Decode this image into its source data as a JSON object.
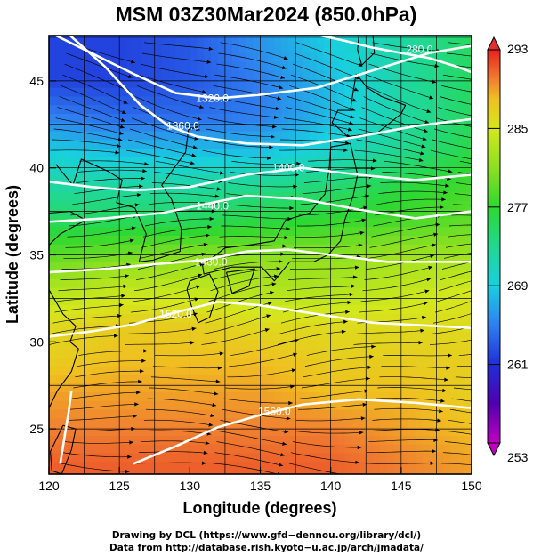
{
  "chart_data": {
    "type": "heatmap",
    "title": "MSM 03Z30Mar2024 (850.0hPa)",
    "xlabel": "Longitude (degrees)",
    "ylabel": "Latitude  (degrees)",
    "xlim": [
      120,
      150
    ],
    "ylim": [
      22.4,
      47.6
    ],
    "x_ticks": [
      120,
      125,
      130,
      135,
      140,
      145,
      150
    ],
    "y_ticks": [
      25,
      30,
      35,
      40,
      45
    ],
    "grid": true,
    "colorbar": {
      "range": [
        253,
        293
      ],
      "tick_labels": [
        "293",
        "285",
        "277",
        "269",
        "261",
        "253"
      ],
      "tick_values": [
        293,
        285,
        277,
        269,
        261,
        253
      ],
      "stops": [
        {
          "value": 253,
          "color": "#c000c0"
        },
        {
          "value": 257,
          "color": "#5000b0"
        },
        {
          "value": 261,
          "color": "#1e2fd8"
        },
        {
          "value": 265,
          "color": "#2f7ff0"
        },
        {
          "value": 269,
          "color": "#18d0e0"
        },
        {
          "value": 273,
          "color": "#20d890"
        },
        {
          "value": 277,
          "color": "#2ed830"
        },
        {
          "value": 281,
          "color": "#8ce020"
        },
        {
          "value": 285,
          "color": "#d4e81c"
        },
        {
          "value": 288,
          "color": "#f0c020"
        },
        {
          "value": 290,
          "color": "#f08030"
        },
        {
          "value": 293,
          "color": "#e82020"
        }
      ]
    },
    "temperature_field": {
      "lat_rows": [
        47,
        45,
        43,
        41,
        39,
        37,
        35,
        33,
        31,
        29,
        27,
        25,
        23
      ],
      "lon_cols": [
        120,
        125,
        130,
        135,
        140,
        145,
        150
      ],
      "values": [
        [
          262,
          262,
          263,
          266,
          269,
          272,
          275
        ],
        [
          262,
          262,
          263,
          265,
          268,
          272,
          275
        ],
        [
          265,
          264,
          264,
          265,
          268,
          272,
          275
        ],
        [
          269,
          268,
          268,
          268,
          270,
          273,
          276
        ],
        [
          272,
          272,
          272,
          273,
          274,
          276,
          278
        ],
        [
          275,
          275,
          275,
          276,
          277,
          278,
          279
        ],
        [
          279,
          280,
          281,
          281,
          281,
          282,
          282
        ],
        [
          283,
          284,
          284,
          283,
          283,
          284,
          285
        ],
        [
          286,
          287,
          287,
          286,
          286,
          286,
          286
        ],
        [
          287,
          288,
          288,
          288,
          287,
          287,
          287
        ],
        [
          289,
          289,
          289,
          289,
          288,
          288,
          287
        ],
        [
          290,
          290,
          290,
          290,
          290,
          289,
          288
        ],
        [
          291,
          291,
          291,
          291,
          291,
          290,
          289
        ]
      ]
    },
    "contours": [
      {
        "label": "1320.0",
        "label_pos": [
          131.6,
          44.0
        ],
        "points": [
          [
            120.5,
            47.6
          ],
          [
            123,
            46.6
          ],
          [
            126,
            45.4
          ],
          [
            129,
            44.3
          ],
          [
            132,
            44.0
          ],
          [
            135,
            44.2
          ],
          [
            139,
            44.6
          ],
          [
            143,
            45.6
          ],
          [
            147,
            46.6
          ],
          [
            150,
            47.0
          ]
        ]
      },
      {
        "label": "1360.0",
        "label_pos": [
          129.5,
          42.4
        ],
        "points": [
          [
            121.5,
            47.6
          ],
          [
            124,
            45.8
          ],
          [
            126.5,
            43.6
          ],
          [
            128.5,
            42.4
          ],
          [
            130.5,
            41.8
          ],
          [
            134,
            41.4
          ],
          [
            138,
            41.3
          ],
          [
            142,
            41.8
          ],
          [
            146,
            42.4
          ],
          [
            150,
            42.8
          ]
        ]
      },
      {
        "label": "1400.0",
        "label_pos": [
          137.0,
          40.0
        ],
        "points": [
          [
            120,
            39.2
          ],
          [
            123,
            38.9
          ],
          [
            126,
            38.7
          ],
          [
            130,
            38.9
          ],
          [
            134,
            39.6
          ],
          [
            138,
            40.0
          ],
          [
            142,
            39.6
          ],
          [
            146,
            39.3
          ],
          [
            150,
            39.6
          ]
        ]
      },
      {
        "label": "1440.0",
        "label_pos": [
          131.6,
          37.8
        ],
        "points": [
          [
            120,
            36.9
          ],
          [
            124,
            37.1
          ],
          [
            128,
            37.4
          ],
          [
            131,
            37.9
          ],
          [
            134,
            38.4
          ],
          [
            138,
            38.2
          ],
          [
            142,
            37.6
          ],
          [
            146,
            37.1
          ],
          [
            150,
            37.5
          ]
        ]
      },
      {
        "label": "1480.0",
        "label_pos": [
          131.5,
          34.6
        ],
        "points": [
          [
            120,
            34.0
          ],
          [
            124,
            34.2
          ],
          [
            128,
            34.5
          ],
          [
            131,
            34.7
          ],
          [
            134,
            35.2
          ],
          [
            137,
            35.3
          ],
          [
            140,
            35.0
          ],
          [
            144,
            34.6
          ],
          [
            150,
            34.6
          ]
        ]
      },
      {
        "label": "1520.0",
        "label_pos": [
          129.0,
          31.6
        ],
        "points": [
          [
            120,
            30.3
          ],
          [
            123,
            30.6
          ],
          [
            126,
            31.0
          ],
          [
            129,
            31.7
          ],
          [
            132,
            32.3
          ],
          [
            135,
            32.1
          ],
          [
            139,
            31.6
          ],
          [
            143,
            31.1
          ],
          [
            150,
            30.8
          ]
        ]
      },
      {
        "label": "1560.0",
        "label_pos": [
          136.0,
          26.0
        ],
        "points": [
          [
            126,
            23.0
          ],
          [
            129,
            24.0
          ],
          [
            132,
            25.1
          ],
          [
            135,
            25.8
          ],
          [
            138,
            26.4
          ],
          [
            142,
            26.7
          ],
          [
            146,
            26.5
          ],
          [
            150,
            26.2
          ]
        ]
      },
      {
        "label": "280.0",
        "label_pos": [
          146.3,
          46.8
        ],
        "points": [
          [
            139.3,
            47.6
          ],
          [
            141,
            47.3
          ],
          [
            143,
            46.9
          ],
          [
            145,
            46.6
          ],
          [
            147,
            46.3
          ],
          [
            149,
            45.8
          ],
          [
            150,
            45.5
          ]
        ]
      },
      {
        "label": "",
        "label_pos": null,
        "points": [
          [
            120.8,
            23.0
          ],
          [
            121.1,
            24.5
          ],
          [
            121.4,
            26.0
          ],
          [
            121.6,
            27.2
          ]
        ]
      }
    ],
    "wind_field": {
      "description_units": "streamlines, dominantly westerly",
      "dir_deg_from_east_by_lat": [
        [
          47,
          -10
        ],
        [
          44,
          -15
        ],
        [
          41,
          -5
        ],
        [
          38,
          2
        ],
        [
          35,
          5
        ],
        [
          32,
          10
        ],
        [
          29,
          5
        ],
        [
          26,
          -2
        ],
        [
          23,
          -5
        ]
      ]
    }
  },
  "footer": {
    "line1": "Drawing by DCL (https://www.gfd−dennou.org/library/dcl/)",
    "line2": "Data from http://database.rish.kyoto−u.ac.jp/arch/jmadata/"
  }
}
